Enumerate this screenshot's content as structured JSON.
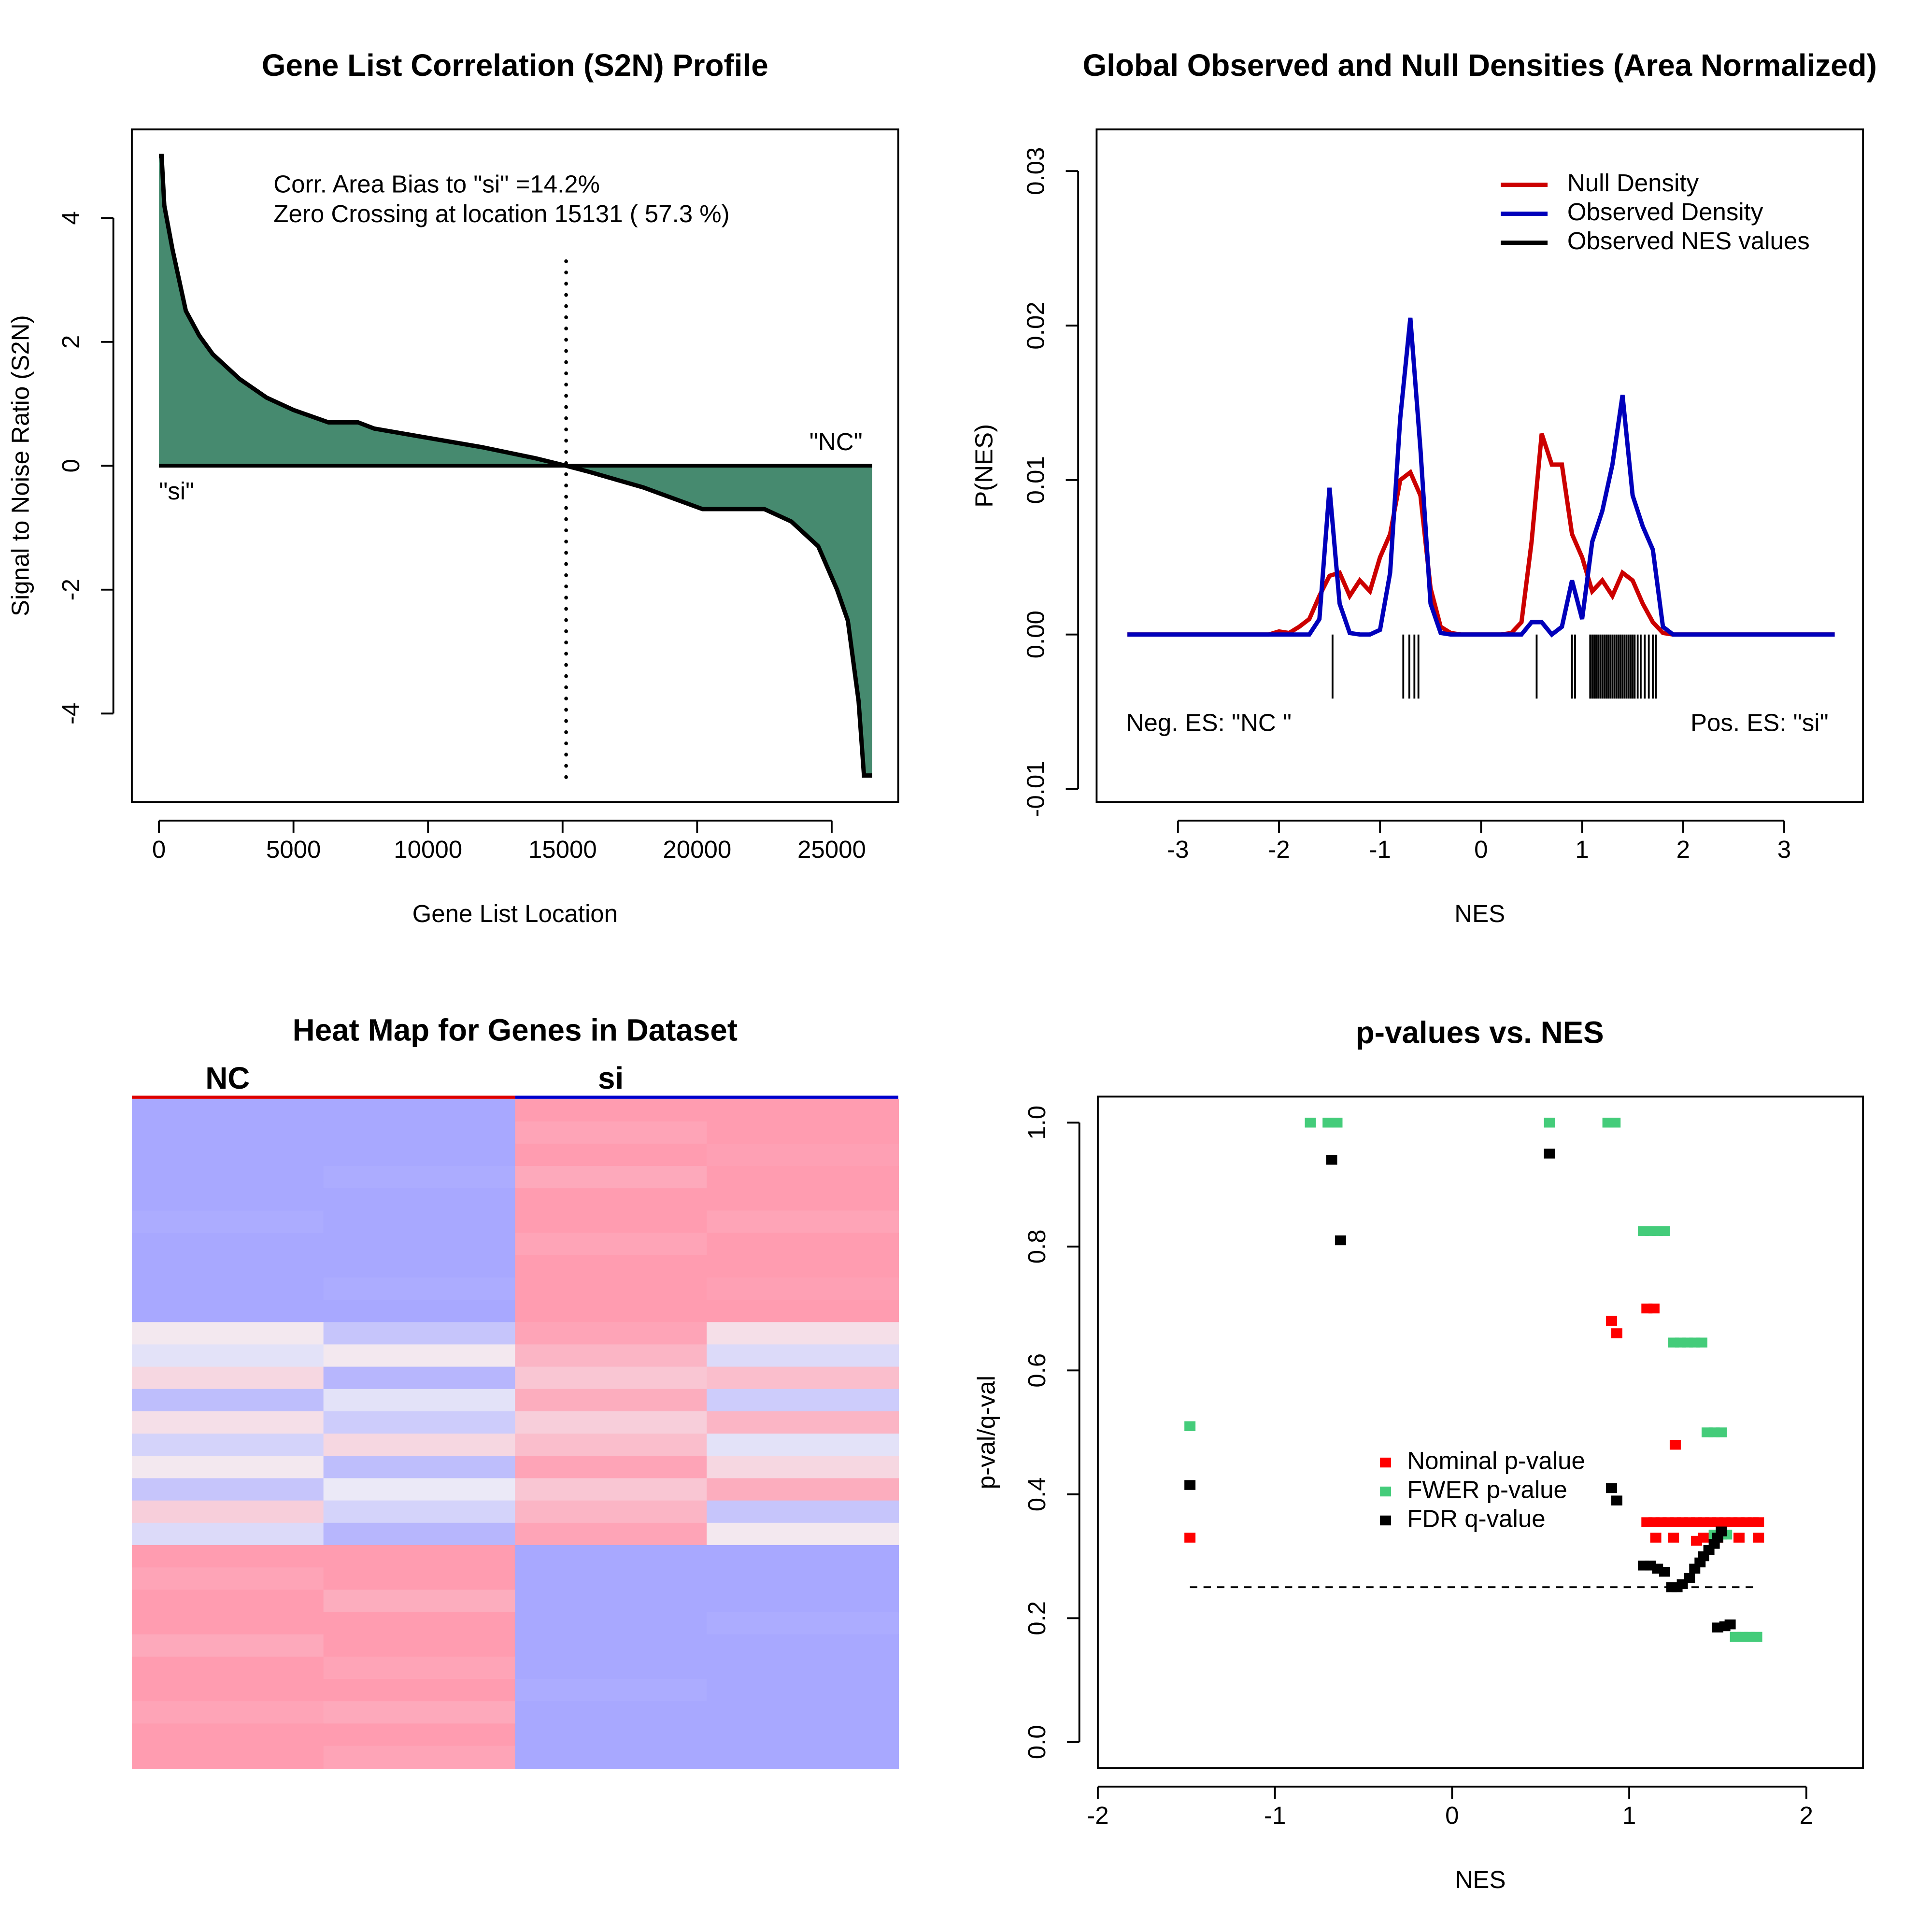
{
  "chart_data": [
    {
      "type": "area",
      "title": "Gene List Correlation (S2N) Profile",
      "x_label": "Gene List Location",
      "y_label": "Signal to Noise Ratio (S2N)",
      "x": [
        0,
        100,
        200,
        500,
        1000,
        1500,
        2000,
        3000,
        4000,
        5000,
        6300,
        7400,
        8000,
        10000,
        12000,
        14000,
        15131,
        16000,
        18000,
        20200,
        22500,
        23500,
        24500,
        25200,
        25600,
        26000,
        26200,
        26500
      ],
      "values": [
        5,
        5,
        4.2,
        3.5,
        2.5,
        2.1,
        1.8,
        1.4,
        1.1,
        0.9,
        0.7,
        0.7,
        0.6,
        0.45,
        0.3,
        0.12,
        0,
        -0.1,
        -0.35,
        -0.7,
        -0.7,
        -0.9,
        -1.3,
        -2.0,
        -2.5,
        -3.8,
        -5,
        -5
      ],
      "color": "#468a6f",
      "line_color": "#000000",
      "vline": 15131,
      "annotations": [
        "Corr. Area Bias to \"si\" =14.2%",
        "Zero Crossing at location  15131  ( 57.3  %)",
        "\"NC\"",
        "\"si\""
      ],
      "xlim": [
        -1007,
        27473
      ],
      "ylim": [
        -5.43,
        5.43
      ],
      "xticks": [
        0,
        5000,
        10000,
        15000,
        20000,
        25000
      ],
      "yticks": [
        -4,
        -2,
        0,
        2,
        4
      ]
    },
    {
      "type": "line",
      "title": "Global Observed and Null Densities (Area Normalized)",
      "x_label": "NES",
      "y_label": "P(NES)",
      "x": [
        -3.5,
        -2.1,
        -2.0,
        -1.9,
        -1.8,
        -1.7,
        -1.6,
        -1.5,
        -1.4,
        -1.3,
        -1.2,
        -1.1,
        -1.0,
        -0.9,
        -0.8,
        -0.7,
        -0.6,
        -0.5,
        -0.4,
        -0.3,
        -0.2,
        -0.1,
        0,
        0.1,
        0.2,
        0.3,
        0.4,
        0.5,
        0.6,
        0.7,
        0.8,
        0.9,
        1.0,
        1.1,
        1.2,
        1.3,
        1.4,
        1.5,
        1.6,
        1.7,
        1.8,
        1.9,
        3.5
      ],
      "series": [
        {
          "name": "Null Density",
          "color": "#cc0000",
          "values": [
            0,
            0,
            0.0002,
            0.0001,
            0.0005,
            0.001,
            0.0025,
            0.0038,
            0.004,
            0.0025,
            0.0035,
            0.0028,
            0.005,
            0.0065,
            0.01,
            0.0105,
            0.009,
            0.003,
            0.0005,
            0.0001,
            0,
            0,
            0,
            0,
            0,
            0.0001,
            0.0008,
            0.006,
            0.013,
            0.011,
            0.011,
            0.0065,
            0.005,
            0.0028,
            0.0035,
            0.0025,
            0.004,
            0.0035,
            0.002,
            0.0008,
            0.0001,
            0,
            0
          ]
        },
        {
          "name": "Observed Density",
          "color": "#0000bb",
          "values": [
            0,
            0,
            0,
            0,
            0,
            0,
            0.001,
            0.0095,
            0.002,
            0.0001,
            0,
            0,
            0.0003,
            0.004,
            0.014,
            0.0205,
            0.012,
            0.002,
            0.0001,
            0,
            0,
            0,
            0,
            0,
            0,
            0,
            0,
            0.0008,
            0.0008,
            0,
            0.0005,
            0.0035,
            0.001,
            0.006,
            0.008,
            0.011,
            0.0155,
            0.009,
            0.007,
            0.0055,
            0.0005,
            0,
            0
          ]
        },
        {
          "name": "Observed NES values",
          "color": "#000000",
          "x": [
            -1.47,
            -0.77,
            -0.71,
            -0.66,
            -0.62,
            0.55,
            0.9,
            0.93,
            1.08,
            1.1,
            1.12,
            1.14,
            1.16,
            1.18,
            1.2,
            1.22,
            1.24,
            1.26,
            1.28,
            1.3,
            1.32,
            1.34,
            1.36,
            1.38,
            1.4,
            1.42,
            1.44,
            1.46,
            1.48,
            1.5,
            1.52,
            1.55,
            1.58,
            1.62,
            1.66,
            1.7,
            1.73
          ]
        }
      ],
      "annotations": [
        "Neg. ES: \"NC \"",
        "Pos. ES: \"si\""
      ],
      "xlim": [
        -3.805,
        3.78
      ],
      "ylim": [
        -0.01085,
        0.0327
      ],
      "xticks": [
        -3,
        -2,
        -1,
        0,
        1,
        2,
        3
      ],
      "yticks": [
        -0.01,
        {
          "value": 0,
          "label": "0.00"
        },
        0.01,
        0.02,
        0.03
      ]
    },
    {
      "type": "heatmap",
      "title": "Heat Map for Genes in Dataset",
      "groups": [
        {
          "name": "NC",
          "color": "#dd0000"
        },
        {
          "name": "si",
          "color": "#0000cc"
        }
      ],
      "low_color": "#a8a8ff",
      "mid_color": "#f2f0f6",
      "high_color": "#ff9cb0",
      "rows": [
        [
          -1,
          -1,
          1,
          1
        ],
        [
          -1,
          -1,
          0.9,
          1
        ],
        [
          -1,
          -1,
          1,
          0.95
        ],
        [
          -1,
          -0.95,
          0.85,
          1
        ],
        [
          -1,
          -1,
          1,
          1
        ],
        [
          -0.95,
          -1,
          1,
          0.9
        ],
        [
          -1,
          -1,
          0.9,
          1
        ],
        [
          -1,
          -1,
          1,
          1
        ],
        [
          -1,
          -0.95,
          1,
          0.95
        ],
        [
          -1,
          -1,
          1,
          1
        ],
        [
          0.1,
          -0.6,
          0.9,
          0.2
        ],
        [
          -0.2,
          0.1,
          0.7,
          -0.3
        ],
        [
          0.3,
          -0.8,
          0.5,
          0.6
        ],
        [
          -0.7,
          -0.2,
          0.8,
          -0.5
        ],
        [
          0.2,
          -0.5,
          0.4,
          0.7
        ],
        [
          -0.4,
          0.3,
          0.6,
          -0.2
        ],
        [
          0.1,
          -0.7,
          0.9,
          0.3
        ],
        [
          -0.6,
          -0.1,
          0.5,
          0.8
        ],
        [
          0.4,
          -0.4,
          0.7,
          -0.6
        ],
        [
          -0.3,
          -0.8,
          0.9,
          0.1
        ],
        [
          1,
          1,
          -1,
          -1
        ],
        [
          0.9,
          1,
          -1,
          -1
        ],
        [
          1,
          0.8,
          -1,
          -1
        ],
        [
          1,
          1,
          -1,
          -0.95
        ],
        [
          0.85,
          1,
          -1,
          -1
        ],
        [
          1,
          0.9,
          -1,
          -1
        ],
        [
          1,
          1,
          -0.95,
          -1
        ],
        [
          0.9,
          0.85,
          -1,
          -1
        ],
        [
          1,
          1,
          -1,
          -1
        ],
        [
          1,
          0.9,
          -1,
          -1
        ]
      ]
    },
    {
      "type": "scatter",
      "title": "p-values vs. NES",
      "x_label": "NES",
      "y_label": "p-val/q-val",
      "series": [
        {
          "name": "Nominal p-value",
          "color": "#ff0000",
          "x": [
            -1.48,
            0.9,
            0.93,
            1.1,
            1.14,
            1.26,
            1.1,
            1.14,
            1.18,
            1.22,
            1.26,
            1.3,
            1.34,
            1.38,
            1.42,
            1.46,
            1.5,
            1.54,
            1.58,
            1.62,
            1.66,
            1.7,
            1.73,
            1.15,
            1.25,
            1.38,
            1.42,
            1.5,
            1.62,
            1.73
          ],
          "values": [
            0.33,
            0.68,
            0.66,
            0.7,
            0.7,
            0.48,
            0.355,
            0.355,
            0.355,
            0.355,
            0.355,
            0.355,
            0.355,
            0.355,
            0.355,
            0.355,
            0.355,
            0.355,
            0.355,
            0.355,
            0.355,
            0.355,
            0.355,
            0.33,
            0.33,
            0.325,
            0.33,
            0.33,
            0.33,
            0.33
          ]
        },
        {
          "name": "FWER p-value",
          "color": "#44cc7a",
          "x": [
            -1.48,
            -0.8,
            -0.7,
            -0.65,
            0.55,
            0.88,
            0.92,
            1.08,
            1.12,
            1.16,
            1.2,
            1.25,
            1.29,
            1.33,
            1.37,
            1.41,
            1.44,
            1.48,
            1.52,
            1.48,
            1.52,
            1.55,
            1.6,
            1.64,
            1.68,
            1.72
          ],
          "values": [
            0.51,
            1,
            1,
            1,
            1,
            1,
            1,
            0.825,
            0.825,
            0.825,
            0.825,
            0.645,
            0.645,
            0.645,
            0.645,
            0.645,
            0.5,
            0.5,
            0.5,
            0.335,
            0.335,
            0.335,
            0.17,
            0.17,
            0.17,
            0.17
          ]
        },
        {
          "name": "FDR q-value",
          "color": "#000000",
          "x": [
            -1.48,
            -0.68,
            -0.63,
            0.55,
            0.9,
            0.93,
            1.08,
            1.12,
            1.16,
            1.2,
            1.24,
            1.27,
            1.3,
            1.34,
            1.37,
            1.4,
            1.42,
            1.45,
            1.48,
            1.5,
            1.52,
            1.5,
            1.54,
            1.57
          ],
          "values": [
            0.415,
            0.94,
            0.81,
            0.95,
            0.41,
            0.39,
            0.285,
            0.285,
            0.28,
            0.275,
            0.25,
            0.25,
            0.255,
            0.265,
            0.28,
            0.29,
            0.3,
            0.31,
            0.32,
            0.33,
            0.34,
            0.185,
            0.187,
            0.19
          ]
        }
      ],
      "hline": 0.25,
      "xlim": [
        -2.0,
        2.32
      ],
      "ylim": [
        -0.042,
        1.042
      ],
      "xticks": [
        -2,
        -1,
        0,
        1,
        2
      ],
      "yticks": [
        {
          "value": 0,
          "label": "0.0"
        },
        0.2,
        0.4,
        0.6,
        0.8,
        {
          "value": 1,
          "label": "1.0"
        }
      ]
    }
  ]
}
